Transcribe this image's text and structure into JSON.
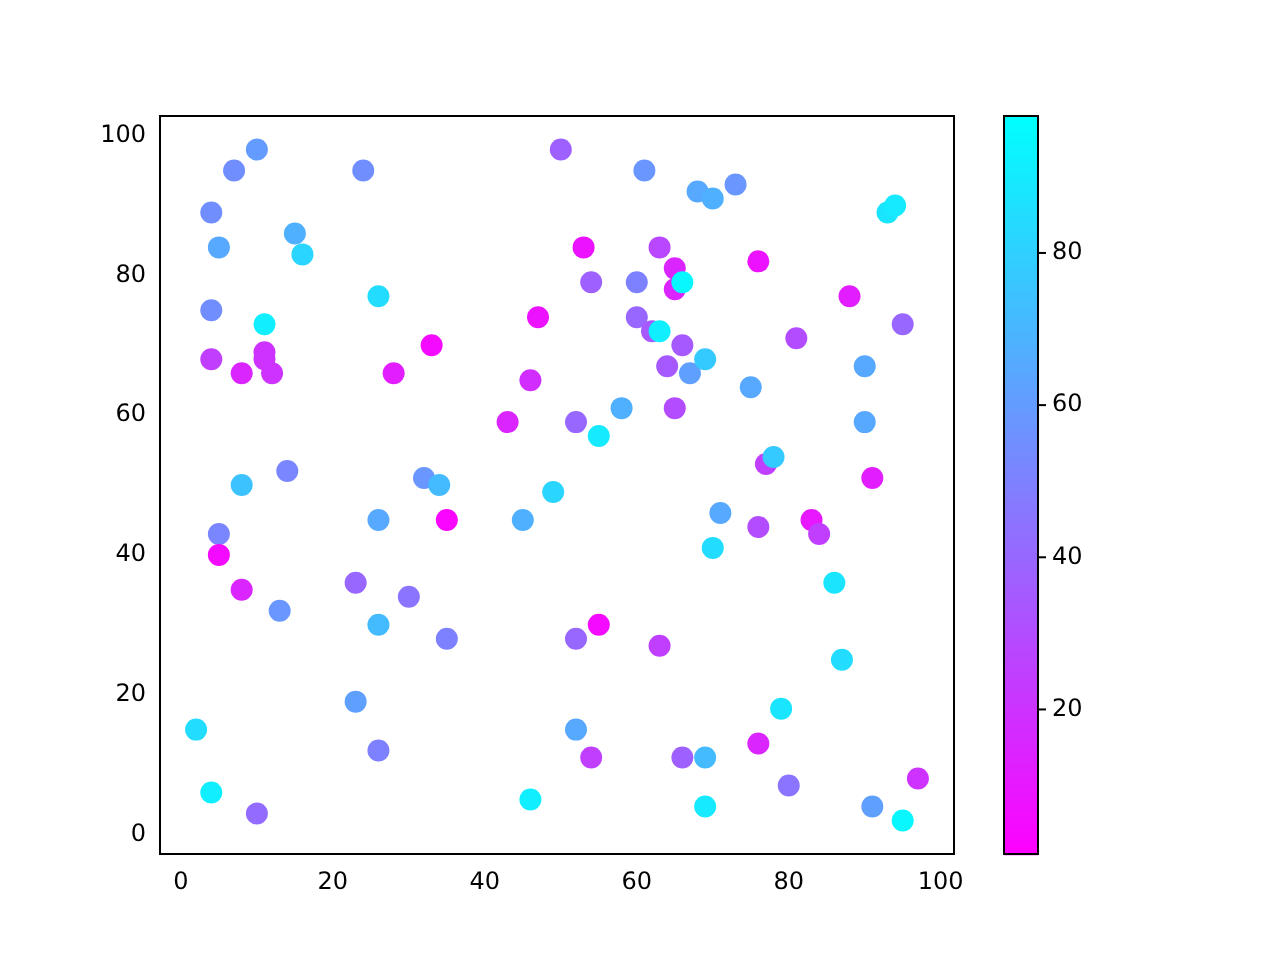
{
  "chart_data": {
    "type": "scatter",
    "marker": "circle",
    "x": [
      2,
      4,
      4,
      4,
      4,
      5,
      5,
      5,
      7,
      8,
      8,
      8,
      10,
      10,
      11,
      11,
      11,
      12,
      13,
      14,
      15,
      16,
      23,
      23,
      24,
      26,
      26,
      26,
      26,
      28,
      30,
      32,
      33,
      34,
      35,
      35,
      43,
      45,
      46,
      46,
      47,
      49,
      50,
      52,
      52,
      52,
      53,
      54,
      54,
      55,
      55,
      58,
      60,
      60,
      61,
      62,
      63,
      63,
      63,
      64,
      65,
      65,
      66,
      65,
      66,
      66,
      67,
      68,
      69,
      69,
      69,
      70,
      70,
      71,
      73,
      75,
      76,
      76,
      76,
      77,
      78,
      79,
      80,
      81,
      83,
      84,
      86,
      87,
      88,
      90,
      90,
      91,
      91,
      93,
      94,
      95,
      95,
      97
    ],
    "values": [
      15,
      6,
      89,
      75,
      68,
      84,
      43,
      40,
      95,
      66,
      50,
      35,
      98,
      3,
      73,
      69,
      68,
      66,
      32,
      52,
      86,
      83,
      36,
      19,
      95,
      77,
      45,
      30,
      12,
      66,
      34,
      51,
      70,
      50,
      45,
      28,
      59,
      45,
      65,
      5,
      74,
      49,
      98,
      59,
      28,
      15,
      84,
      79,
      11,
      57,
      30,
      61,
      79,
      74,
      95,
      72,
      84,
      72,
      27,
      67,
      81,
      78,
      79,
      61,
      70,
      11,
      66,
      92,
      68,
      11,
      4,
      91,
      41,
      46,
      93,
      64,
      82,
      44,
      13,
      53,
      54,
      18,
      7,
      71,
      45,
      43,
      36,
      25,
      77,
      67,
      59,
      51,
      4,
      89,
      90,
      73,
      2,
      8
    ],
    "cvalues": [
      85,
      92,
      55,
      55,
      25,
      65,
      52,
      5,
      55,
      15,
      75,
      15,
      60,
      42,
      92,
      20,
      20,
      20,
      58,
      52,
      68,
      82,
      40,
      62,
      55,
      85,
      65,
      72,
      50,
      12,
      45,
      58,
      5,
      72,
      3,
      50,
      15,
      68,
      18,
      92,
      8,
      82,
      38,
      40,
      40,
      65,
      8,
      38,
      25,
      90,
      5,
      68,
      50,
      40,
      58,
      35,
      28,
      92,
      25,
      35,
      15,
      15,
      95,
      30,
      35,
      38,
      62,
      65,
      78,
      72,
      90,
      68,
      85,
      65,
      58,
      65,
      8,
      30,
      15,
      25,
      78,
      88,
      45,
      30,
      10,
      25,
      88,
      85,
      12,
      65,
      65,
      12,
      62,
      88,
      90,
      40,
      95,
      20
    ],
    "xlim": [
      -2.75,
      101.75
    ],
    "ylim": [
      -2.8,
      102.8
    ],
    "xticks": [
      0,
      20,
      40,
      60,
      80,
      100
    ],
    "yticks": [
      0,
      20,
      40,
      60,
      80,
      100
    ],
    "clim": [
      1,
      98
    ],
    "cticks": [
      20,
      40,
      60,
      80
    ]
  }
}
